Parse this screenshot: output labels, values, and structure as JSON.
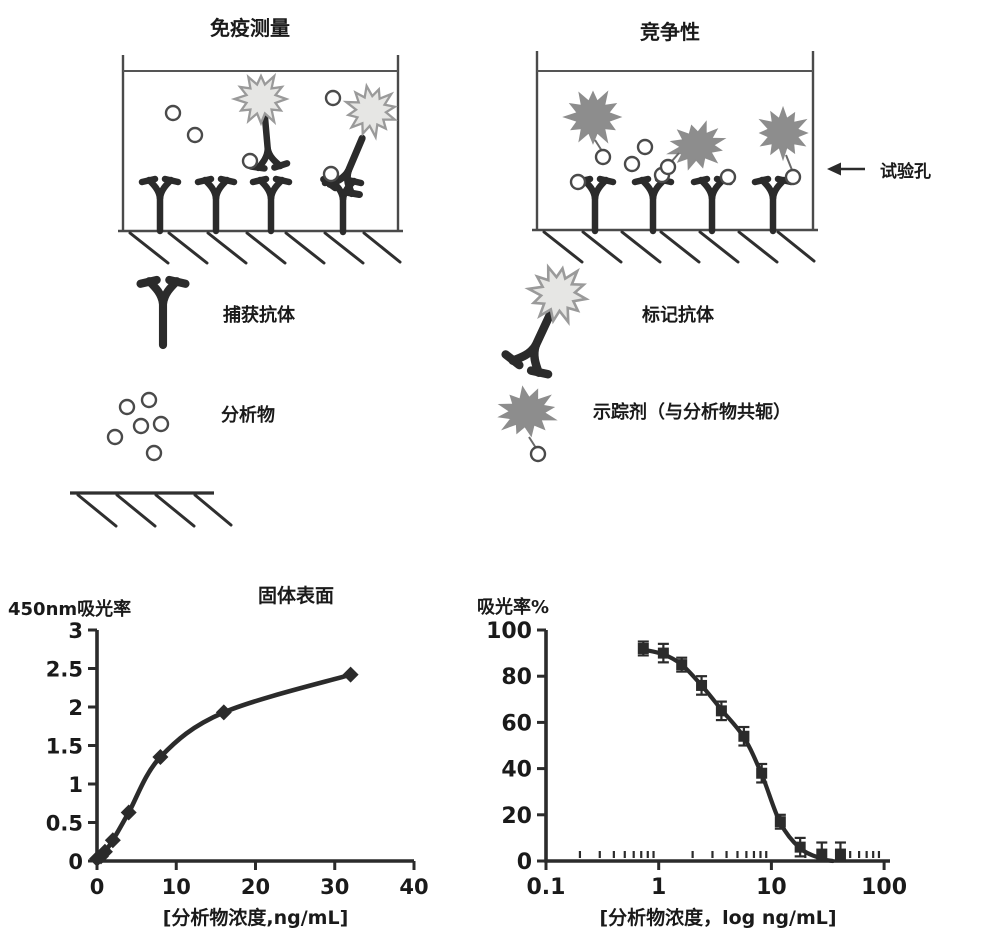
{
  "figure": {
    "panels": {
      "immunoassay": {
        "title": "免疫测量"
      },
      "competitive": {
        "title": "竞争性",
        "pointer_label": "试验孔"
      }
    },
    "legend": {
      "capture_antibody": "捕获抗体",
      "analyte": "分析物",
      "labeled_antibody": "标记抗体",
      "tracer": "示踪剂（与分析物共轭）",
      "surface": "固体表面"
    },
    "colors": {
      "ink": "#2b2b2b",
      "well_outline": "#4a4a4a",
      "label_star_fill": "#e6e6e4",
      "label_star_stroke": "#9a9a9a",
      "tracer_gray": "#8d8d8d",
      "text": "#1a1a1a",
      "background": "#ffffff"
    }
  },
  "chart_data": [
    {
      "type": "line",
      "title": "固体表面",
      "marker": "diamond",
      "xlabel": "[分析物浓度,ng/mL]",
      "ylabel": "450nm吸光率",
      "xscale": "linear",
      "x": [
        0,
        0.5,
        1,
        2,
        4,
        8,
        16,
        32
      ],
      "y": [
        0.03,
        0.06,
        0.12,
        0.27,
        0.63,
        1.35,
        1.93,
        2.42
      ],
      "xticks": [
        0,
        10,
        20,
        30,
        40
      ],
      "yticks": [
        0,
        0.5,
        1,
        1.5,
        2,
        2.5,
        3
      ],
      "xlim": [
        0,
        40
      ],
      "ylim": [
        0,
        3
      ],
      "grid": false,
      "legend": "none"
    },
    {
      "type": "line",
      "marker": "square",
      "xlabel": "[分析物浓度，log ng/mL]",
      "ylabel": "吸光率%",
      "xscale": "log",
      "x": [
        0.73,
        1.1,
        1.6,
        2.4,
        3.6,
        5.7,
        8.2,
        12,
        18,
        28,
        41
      ],
      "y": [
        92,
        90,
        85,
        76,
        65,
        54,
        38,
        17,
        6,
        3,
        3
      ],
      "yerr": [
        3,
        4,
        3,
        4,
        4,
        4,
        4,
        3,
        4,
        5,
        5
      ],
      "curve": {
        "x": [
          0.73,
          1.1,
          1.6,
          2.4,
          3.6,
          5.7,
          8.2,
          12,
          18,
          28,
          35
        ],
        "y": [
          91.5,
          89.5,
          85,
          76,
          65.5,
          53.5,
          37.5,
          16.5,
          5.5,
          1,
          0
        ]
      },
      "xticks": [
        0.1,
        1,
        10,
        100
      ],
      "yticks": [
        0,
        20,
        40,
        60,
        80,
        100
      ],
      "xlim": [
        0.1,
        100
      ],
      "ylim": [
        0,
        100
      ],
      "grid": false,
      "legend": "none"
    }
  ]
}
